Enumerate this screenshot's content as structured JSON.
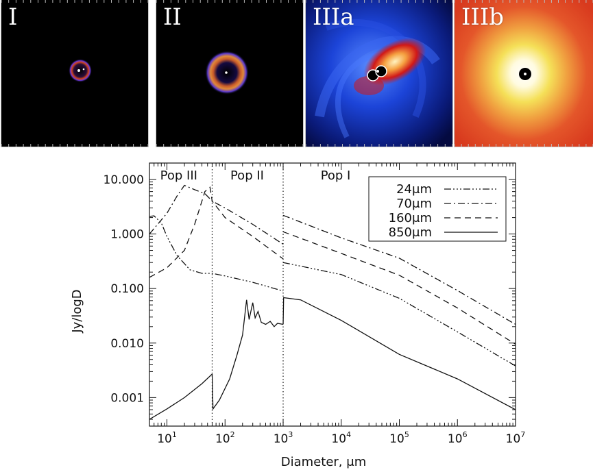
{
  "panels": [
    {
      "label": "I",
      "style": "small-ring"
    },
    {
      "label": "II",
      "style": "large-ring"
    },
    {
      "label": "IIIa",
      "style": "spiral"
    },
    {
      "label": "IIIb",
      "style": "halo"
    }
  ],
  "chart_data": {
    "type": "line",
    "title": "",
    "xlabel": "Diameter, μm",
    "ylabel": "Jy/logD",
    "xscale": "log",
    "yscale": "log",
    "xlim": [
      5,
      10000000
    ],
    "ylim": [
      0.0003,
      20
    ],
    "x_ticks": [
      10,
      100,
      1000,
      10000,
      100000,
      1000000,
      10000000
    ],
    "x_tick_labels": [
      {
        "base": "10",
        "exp": "1"
      },
      {
        "base": "10",
        "exp": "2"
      },
      {
        "base": "10",
        "exp": "3"
      },
      {
        "base": "10",
        "exp": "4"
      },
      {
        "base": "10",
        "exp": "5"
      },
      {
        "base": "10",
        "exp": "6"
      },
      {
        "base": "10",
        "exp": "7"
      }
    ],
    "y_ticks": [
      0.001,
      0.01,
      0.1,
      1,
      10
    ],
    "y_tick_labels": [
      "0.001",
      "0.010",
      "0.100",
      "1.000",
      "10.000"
    ],
    "region_boundaries": [
      60,
      1000
    ],
    "region_labels": [
      {
        "text": "Pop III",
        "x": 16
      },
      {
        "text": "Pop II",
        "x": 240
      },
      {
        "text": "Pop I",
        "x": 8000
      }
    ],
    "legend_position": "top-right",
    "series": [
      {
        "name": "24μm",
        "dash": "dash-triple-dot",
        "segments": [
          [
            [
              5,
              2.1
            ],
            [
              6,
              2.15
            ],
            [
              8,
              1.6
            ],
            [
              10,
              0.9
            ],
            [
              15,
              0.4
            ],
            [
              25,
              0.22
            ],
            [
              40,
              0.19
            ],
            [
              60,
              0.19
            ],
            [
              100,
              0.17
            ],
            [
              300,
              0.13
            ],
            [
              1000,
              0.09
            ]
          ],
          [
            [
              1000,
              0.3
            ],
            [
              10000,
              0.18
            ],
            [
              100000,
              0.066
            ],
            [
              1000000,
              0.016
            ],
            [
              10000000,
              0.0038
            ]
          ]
        ]
      },
      {
        "name": "70μm",
        "dash": "dash-dot",
        "segments": [
          [
            [
              5,
              1.0
            ],
            [
              10,
              2.4
            ],
            [
              15,
              5.0
            ],
            [
              20,
              7.8
            ],
            [
              30,
              6.5
            ],
            [
              45,
              5.5
            ],
            [
              60,
              4.0
            ],
            [
              100,
              3.0
            ],
            [
              300,
              1.5
            ],
            [
              1000,
              0.65
            ]
          ],
          [
            [
              1000,
              2.2
            ],
            [
              10000,
              0.85
            ],
            [
              100000,
              0.36
            ],
            [
              1000000,
              0.092
            ],
            [
              10000000,
              0.022
            ]
          ]
        ]
      },
      {
        "name": "160μm",
        "dash": "dashed",
        "segments": [
          [
            [
              5,
              0.16
            ],
            [
              10,
              0.24
            ],
            [
              20,
              0.5
            ],
            [
              30,
              1.5
            ],
            [
              45,
              6.0
            ],
            [
              55,
              7.2
            ],
            [
              60,
              4.0
            ],
            [
              100,
              2.0
            ],
            [
              300,
              0.9
            ],
            [
              1000,
              0.35
            ]
          ],
          [
            [
              1000,
              1.1
            ],
            [
              10000,
              0.44
            ],
            [
              100000,
              0.175
            ],
            [
              1000000,
              0.044
            ],
            [
              10000000,
              0.0095
            ]
          ]
        ]
      },
      {
        "name": "850μm",
        "dash": "solid",
        "segments": [
          [
            [
              5,
              0.0004
            ],
            [
              10,
              0.00062
            ],
            [
              20,
              0.001
            ],
            [
              40,
              0.0018
            ],
            [
              60,
              0.0027
            ]
          ],
          [
            [
              60,
              0.0027
            ],
            [
              62,
              0.00062
            ],
            [
              80,
              0.0009
            ],
            [
              120,
              0.0022
            ],
            [
              160,
              0.006
            ],
            [
              200,
              0.014
            ],
            [
              235,
              0.062
            ],
            [
              260,
              0.027
            ],
            [
              300,
              0.055
            ],
            [
              330,
              0.029
            ],
            [
              370,
              0.038
            ],
            [
              420,
              0.024
            ],
            [
              500,
              0.022
            ],
            [
              600,
              0.025
            ],
            [
              700,
              0.02
            ],
            [
              800,
              0.023
            ],
            [
              1000,
              0.022
            ]
          ],
          [
            [
              1000,
              0.022
            ],
            [
              1020,
              0.068
            ],
            [
              2000,
              0.062
            ],
            [
              10000,
              0.026
            ],
            [
              100000,
              0.0062
            ],
            [
              1000000,
              0.0022
            ],
            [
              10000000,
              0.0006
            ]
          ]
        ]
      }
    ]
  }
}
